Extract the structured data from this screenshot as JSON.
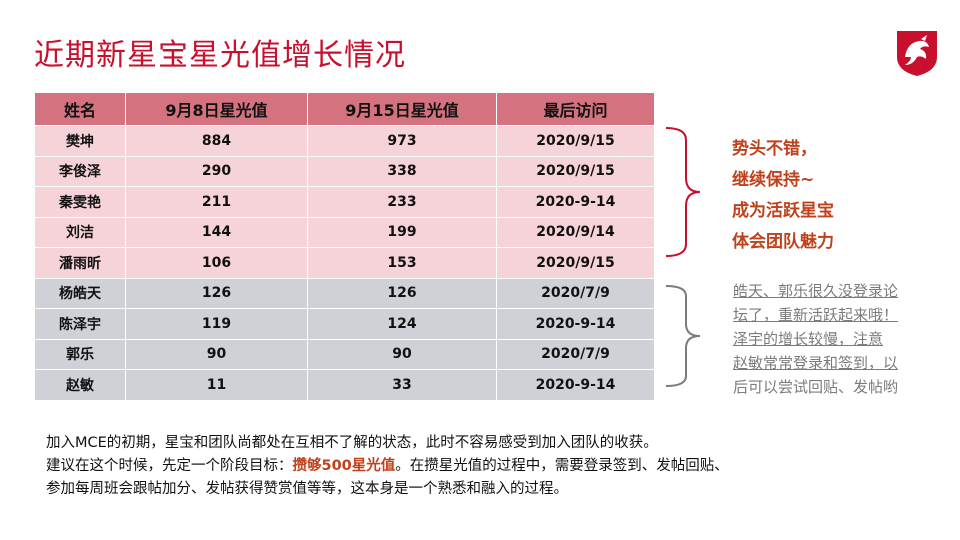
{
  "title": "近期新星宝星光值增长情况",
  "brand_color": "#c8102e",
  "table": {
    "headers": [
      "姓名",
      "9月8日星光值",
      "9月15日星光值",
      "最后访问"
    ],
    "good_rows": [
      [
        "樊坤",
        "884",
        "973",
        "2020/9/15"
      ],
      [
        "李俊泽",
        "290",
        "338",
        "2020/9/15"
      ],
      [
        "秦雯艳",
        "211",
        "233",
        "2020-9-14"
      ],
      [
        "刘洁",
        "144",
        "199",
        "2020/9/14"
      ],
      [
        "潘雨昕",
        "106",
        "153",
        "2020/9/15"
      ]
    ],
    "bad_rows": [
      [
        "杨皓天",
        "126",
        "126",
        "2020/7/9"
      ],
      [
        "陈泽宇",
        "119",
        "124",
        "2020-9-14"
      ],
      [
        "郭乐",
        "90",
        "90",
        "2020/7/9"
      ],
      [
        "赵敏",
        "11",
        "33",
        "2020-9-14"
      ]
    ]
  },
  "note_good": [
    "势头不错，",
    "继续保持~",
    "成为活跃星宝",
    "体会团队魅力"
  ],
  "note_bad": [
    "皓天、郭乐很久没登录论",
    "坛了，重新活跃起来哦！",
    "泽宇的增长较慢，注意",
    "赵敏常常登录和签到，以",
    "后可以尝试回贴、发帖哟"
  ],
  "footer": {
    "line1": "加入MCE的初期，星宝和团队尚都处在互相不了解的状态，此时不容易感受到加入团队的收获。",
    "line2_pre": "建议在这个时候，先定一个阶段目标：",
    "line2_highlight": "攒够500星光值",
    "line2_post": "。在攒星光值的过程中，需要登录签到、发帖回贴、",
    "line3": "参加每周班会跟帖加分、发帖获得赞赏值等等，这本身是一个熟悉和融入的过程。"
  }
}
